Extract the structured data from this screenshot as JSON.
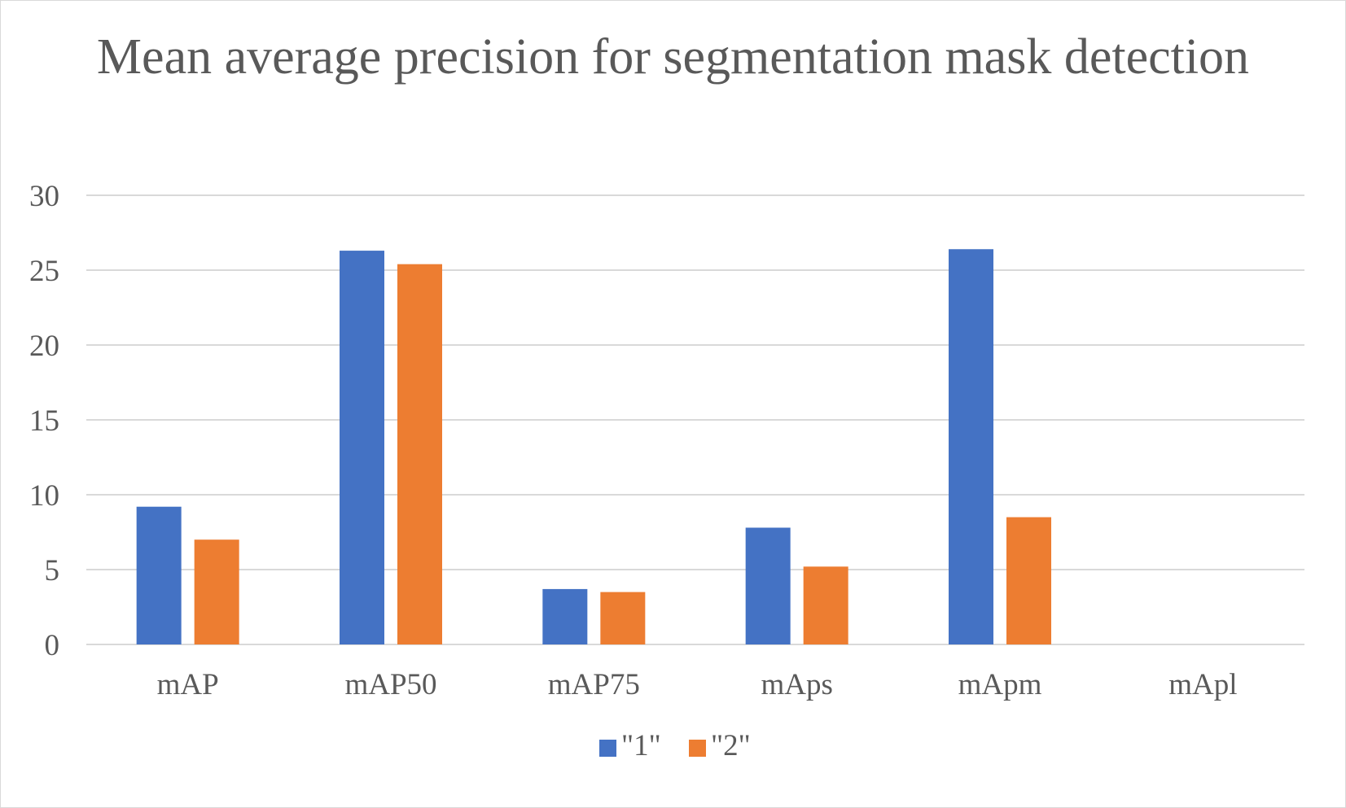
{
  "chart_data": {
    "type": "bar",
    "title": "Mean average precision for segmentation mask detection",
    "xlabel": "",
    "ylabel": "",
    "categories": [
      "mAP",
      "mAP50",
      "mAP75",
      "mAps",
      "mApm",
      "mApl"
    ],
    "series": [
      {
        "name": "\"1\"",
        "color": "#4472c4",
        "values": [
          9.2,
          26.3,
          3.7,
          7.8,
          26.4,
          0
        ]
      },
      {
        "name": "\"2\"",
        "color": "#ed7d31",
        "values": [
          7.0,
          25.4,
          3.5,
          5.2,
          8.5,
          0
        ]
      }
    ],
    "ylim": [
      0,
      30
    ],
    "yticks": [
      "0",
      "5",
      "10",
      "15",
      "20",
      "25",
      "30"
    ],
    "grid": true,
    "legend": "bottom",
    "gridline_color": "#d9d9d9",
    "text_color": "#595959"
  }
}
